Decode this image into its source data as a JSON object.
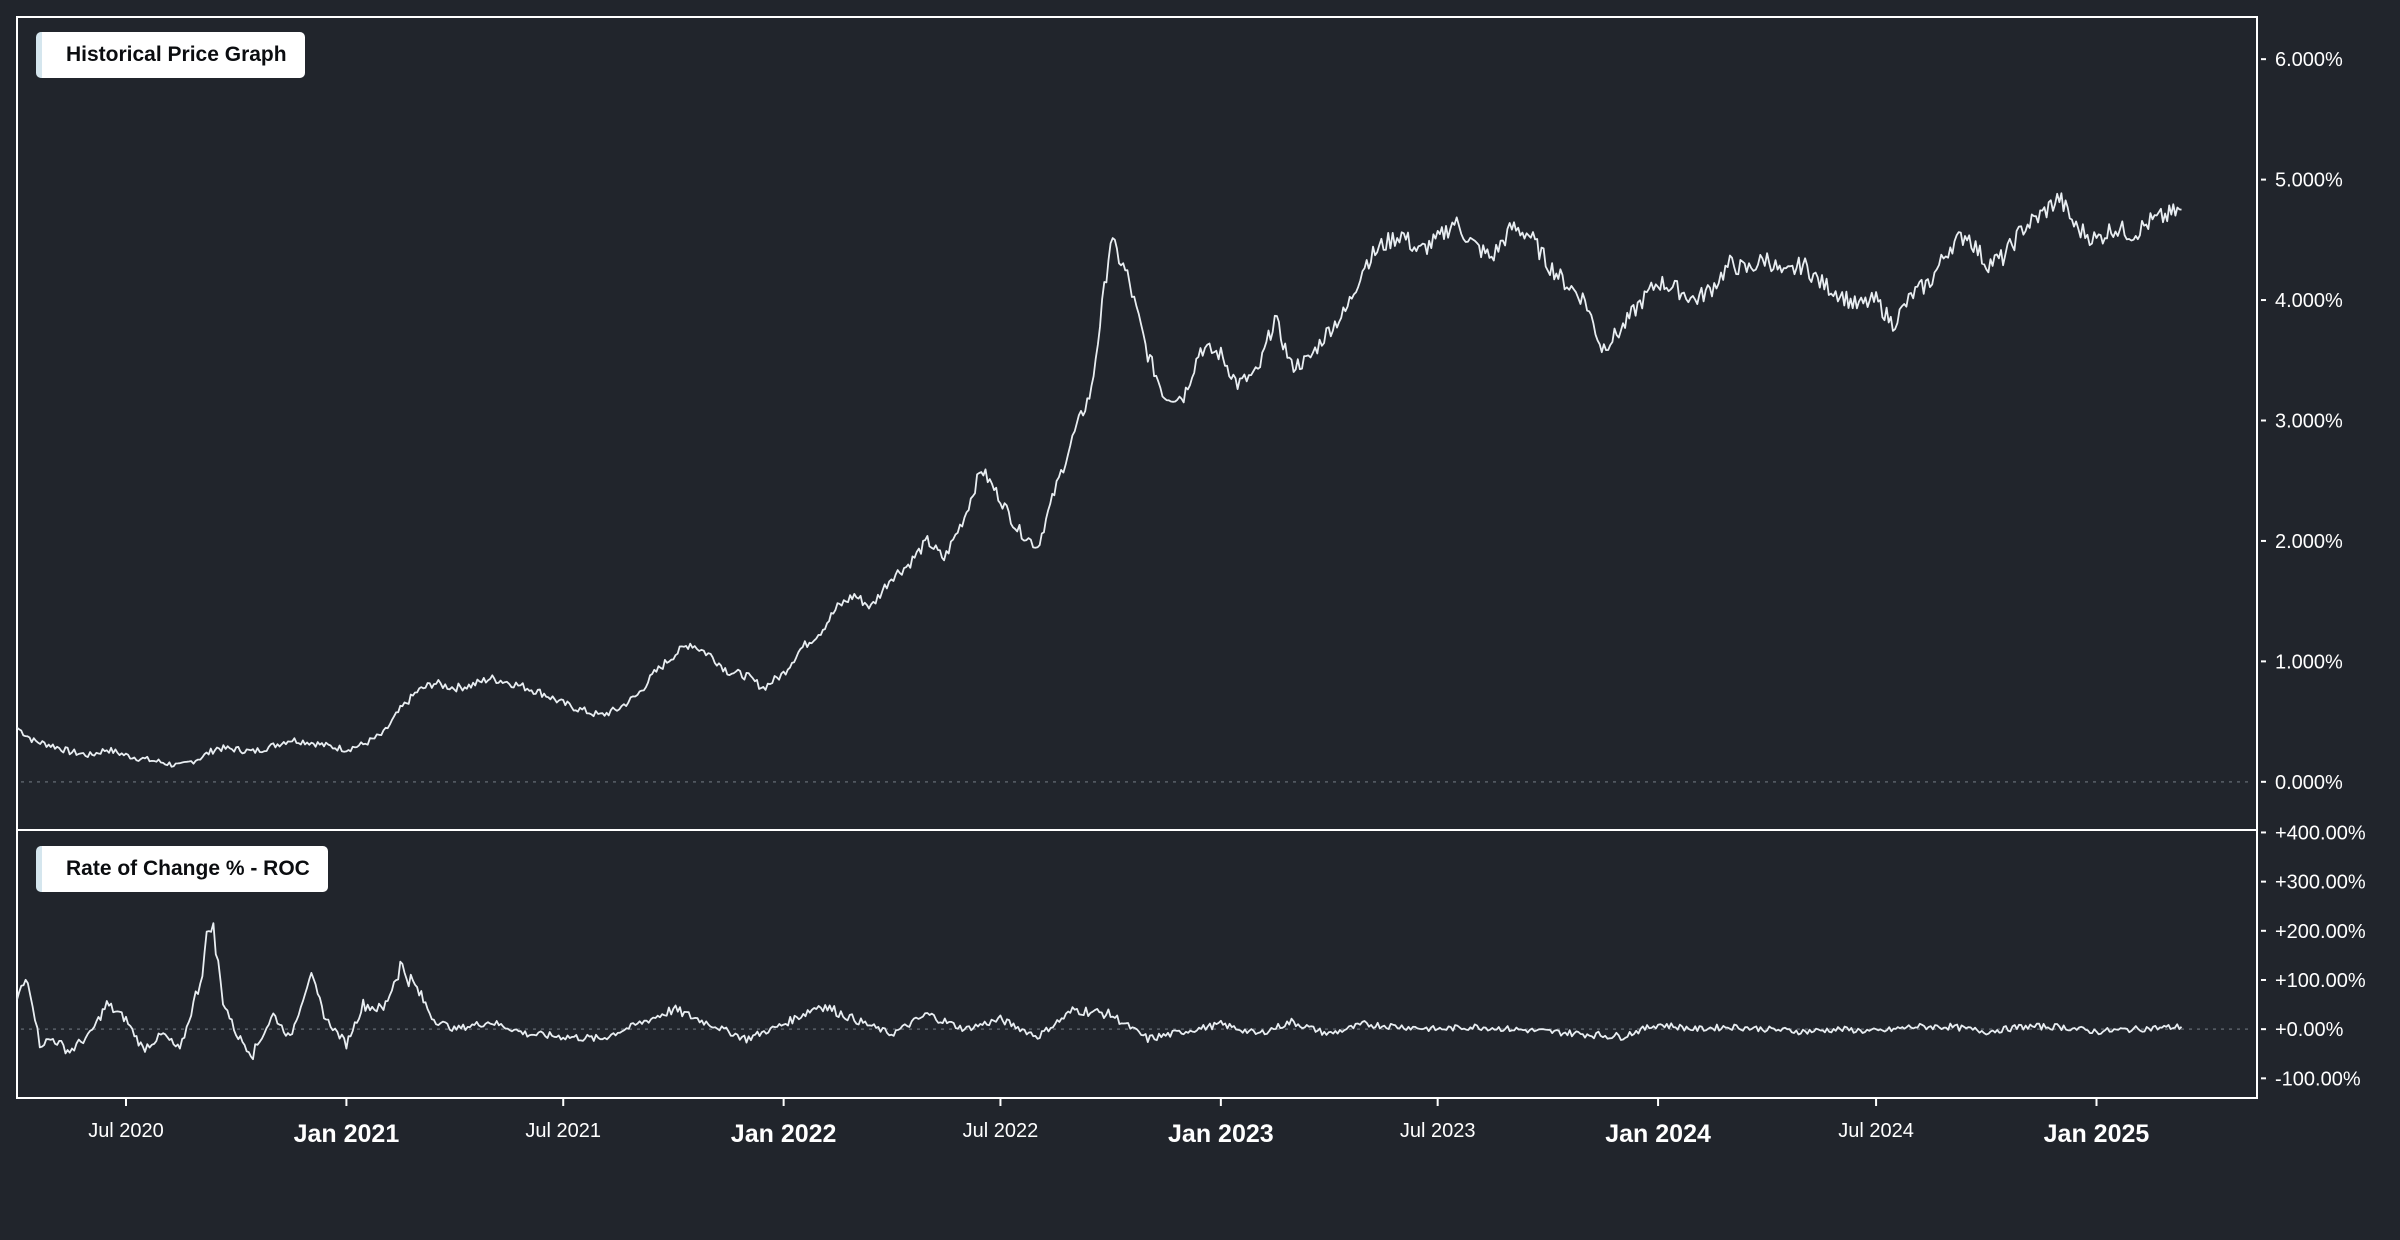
{
  "panels": {
    "price": {
      "title": "Historical Price Graph"
    },
    "roc": {
      "title": "Rate of Change % - ROC"
    }
  },
  "colors": {
    "background": "#21252c",
    "line": "#e9eef2",
    "frame": "#ffffff",
    "zero_line": "#5a6068",
    "title_bg": "#ffffff",
    "title_text": "#0b0d10",
    "title_accent": "#d5e6ee"
  },
  "chart_data": [
    {
      "type": "line",
      "title": "Historical Price Graph",
      "xlim": [
        "2020-04-01",
        "2025-05-15"
      ],
      "ylim": [
        -0.4,
        6.35
      ],
      "y_axis_position": "right",
      "y_ticks": [
        0,
        1,
        2,
        3,
        4,
        5,
        6
      ],
      "y_tick_labels": [
        "0.000%",
        "1.000%",
        "2.000%",
        "3.000%",
        "4.000%",
        "5.000%",
        "6.000%"
      ],
      "zero_line": "dotted",
      "series": [
        {
          "points": [
            [
              "2020-04-01",
              0.45
            ],
            [
              "2020-04-15",
              0.34
            ],
            [
              "2020-05-01",
              0.3
            ],
            [
              "2020-05-15",
              0.25
            ],
            [
              "2020-06-01",
              0.22
            ],
            [
              "2020-06-15",
              0.27
            ],
            [
              "2020-07-01",
              0.22
            ],
            [
              "2020-07-15",
              0.19
            ],
            [
              "2020-08-01",
              0.16
            ],
            [
              "2020-08-15",
              0.13
            ],
            [
              "2020-09-01",
              0.2
            ],
            [
              "2020-09-15",
              0.28
            ],
            [
              "2020-10-01",
              0.27
            ],
            [
              "2020-10-15",
              0.25
            ],
            [
              "2020-11-01",
              0.3
            ],
            [
              "2020-11-15",
              0.35
            ],
            [
              "2020-12-01",
              0.33
            ],
            [
              "2020-12-15",
              0.3
            ],
            [
              "2021-01-01",
              0.27
            ],
            [
              "2021-01-15",
              0.31
            ],
            [
              "2021-02-01",
              0.4
            ],
            [
              "2021-02-15",
              0.6
            ],
            [
              "2021-03-01",
              0.75
            ],
            [
              "2021-03-15",
              0.82
            ],
            [
              "2021-04-01",
              0.78
            ],
            [
              "2021-04-15",
              0.8
            ],
            [
              "2021-05-01",
              0.86
            ],
            [
              "2021-05-15",
              0.83
            ],
            [
              "2021-06-01",
              0.78
            ],
            [
              "2021-06-15",
              0.73
            ],
            [
              "2021-07-01",
              0.65
            ],
            [
              "2021-07-15",
              0.6
            ],
            [
              "2021-08-01",
              0.55
            ],
            [
              "2021-08-15",
              0.6
            ],
            [
              "2021-09-01",
              0.72
            ],
            [
              "2021-09-15",
              0.9
            ],
            [
              "2021-10-01",
              1.05
            ],
            [
              "2021-10-15",
              1.15
            ],
            [
              "2021-11-01",
              1.05
            ],
            [
              "2021-11-15",
              0.92
            ],
            [
              "2021-12-01",
              0.88
            ],
            [
              "2021-12-15",
              0.78
            ],
            [
              "2022-01-01",
              0.9
            ],
            [
              "2022-01-15",
              1.1
            ],
            [
              "2022-02-01",
              1.25
            ],
            [
              "2022-02-15",
              1.45
            ],
            [
              "2022-03-01",
              1.55
            ],
            [
              "2022-03-15",
              1.45
            ],
            [
              "2022-04-01",
              1.7
            ],
            [
              "2022-04-15",
              1.8
            ],
            [
              "2022-05-01",
              2.0
            ],
            [
              "2022-05-15",
              1.85
            ],
            [
              "2022-06-01",
              2.2
            ],
            [
              "2022-06-15",
              2.6
            ],
            [
              "2022-07-01",
              2.35
            ],
            [
              "2022-07-15",
              2.1
            ],
            [
              "2022-08-01",
              1.95
            ],
            [
              "2022-08-15",
              2.4
            ],
            [
              "2022-09-01",
              2.9
            ],
            [
              "2022-09-15",
              3.25
            ],
            [
              "2022-10-01",
              4.5
            ],
            [
              "2022-10-15",
              4.2
            ],
            [
              "2022-11-01",
              3.55
            ],
            [
              "2022-11-15",
              3.2
            ],
            [
              "2022-12-01",
              3.2
            ],
            [
              "2022-12-15",
              3.6
            ],
            [
              "2023-01-01",
              3.55
            ],
            [
              "2023-01-15",
              3.3
            ],
            [
              "2023-02-01",
              3.4
            ],
            [
              "2023-02-15",
              3.85
            ],
            [
              "2023-03-01",
              3.45
            ],
            [
              "2023-03-15",
              3.5
            ],
            [
              "2023-04-01",
              3.75
            ],
            [
              "2023-04-15",
              3.9
            ],
            [
              "2023-05-01",
              4.3
            ],
            [
              "2023-05-15",
              4.45
            ],
            [
              "2023-06-01",
              4.55
            ],
            [
              "2023-06-15",
              4.4
            ],
            [
              "2023-07-01",
              4.5
            ],
            [
              "2023-07-15",
              4.65
            ],
            [
              "2023-08-01",
              4.45
            ],
            [
              "2023-08-15",
              4.35
            ],
            [
              "2023-09-01",
              4.6
            ],
            [
              "2023-09-15",
              4.55
            ],
            [
              "2023-10-01",
              4.3
            ],
            [
              "2023-10-15",
              4.15
            ],
            [
              "2023-11-01",
              4.0
            ],
            [
              "2023-11-15",
              3.6
            ],
            [
              "2023-12-01",
              3.75
            ],
            [
              "2023-12-15",
              3.95
            ],
            [
              "2024-01-01",
              4.15
            ],
            [
              "2024-01-15",
              4.1
            ],
            [
              "2024-02-01",
              4.0
            ],
            [
              "2024-02-15",
              4.1
            ],
            [
              "2024-03-01",
              4.3
            ],
            [
              "2024-03-15",
              4.25
            ],
            [
              "2024-04-01",
              4.35
            ],
            [
              "2024-04-15",
              4.2
            ],
            [
              "2024-05-01",
              4.3
            ],
            [
              "2024-05-15",
              4.15
            ],
            [
              "2024-06-01",
              4.05
            ],
            [
              "2024-06-15",
              3.95
            ],
            [
              "2024-07-01",
              4.0
            ],
            [
              "2024-07-15",
              3.8
            ],
            [
              "2024-08-01",
              4.05
            ],
            [
              "2024-08-15",
              4.15
            ],
            [
              "2024-09-01",
              4.45
            ],
            [
              "2024-09-15",
              4.55
            ],
            [
              "2024-10-01",
              4.3
            ],
            [
              "2024-10-15",
              4.35
            ],
            [
              "2024-11-01",
              4.6
            ],
            [
              "2024-11-15",
              4.7
            ],
            [
              "2024-12-01",
              4.85
            ],
            [
              "2024-12-15",
              4.6
            ],
            [
              "2025-01-01",
              4.5
            ],
            [
              "2025-01-15",
              4.6
            ],
            [
              "2025-02-01",
              4.55
            ],
            [
              "2025-02-15",
              4.65
            ],
            [
              "2025-03-01",
              4.7
            ],
            [
              "2025-03-13",
              4.75
            ]
          ]
        }
      ]
    },
    {
      "type": "line",
      "title": "Rate of Change % - ROC",
      "xlim": [
        "2020-04-01",
        "2025-05-15"
      ],
      "ylim": [
        -140,
        405
      ],
      "y_axis_position": "right",
      "y_ticks": [
        -100,
        0,
        100,
        200,
        300,
        400
      ],
      "y_tick_labels": [
        "-100.00%",
        "+0.00%",
        "+100.00%",
        "+200.00%",
        "+300.00%",
        "+400.00%"
      ],
      "zero_line": "dotted",
      "series": [
        {
          "points": [
            [
              "2020-04-01",
              60
            ],
            [
              "2020-04-10",
              110
            ],
            [
              "2020-04-20",
              -30
            ],
            [
              "2020-05-01",
              -20
            ],
            [
              "2020-05-15",
              -45
            ],
            [
              "2020-06-01",
              -10
            ],
            [
              "2020-06-15",
              50
            ],
            [
              "2020-07-01",
              20
            ],
            [
              "2020-07-15",
              -40
            ],
            [
              "2020-08-01",
              -10
            ],
            [
              "2020-08-15",
              -45
            ],
            [
              "2020-09-01",
              100
            ],
            [
              "2020-09-10",
              230
            ],
            [
              "2020-09-20",
              60
            ],
            [
              "2020-10-01",
              -10
            ],
            [
              "2020-10-15",
              -50
            ],
            [
              "2020-11-01",
              30
            ],
            [
              "2020-11-15",
              -20
            ],
            [
              "2020-12-01",
              110
            ],
            [
              "2020-12-15",
              20
            ],
            [
              "2021-01-01",
              -30
            ],
            [
              "2021-01-15",
              50
            ],
            [
              "2021-02-01",
              40
            ],
            [
              "2021-02-15",
              130
            ],
            [
              "2021-03-01",
              80
            ],
            [
              "2021-03-15",
              20
            ],
            [
              "2021-04-01",
              0
            ],
            [
              "2021-05-01",
              15
            ],
            [
              "2021-06-01",
              -10
            ],
            [
              "2021-07-01",
              -15
            ],
            [
              "2021-08-01",
              -20
            ],
            [
              "2021-09-01",
              10
            ],
            [
              "2021-10-01",
              40
            ],
            [
              "2021-11-01",
              10
            ],
            [
              "2021-12-01",
              -20
            ],
            [
              "2022-01-01",
              10
            ],
            [
              "2022-02-01",
              50
            ],
            [
              "2022-03-01",
              20
            ],
            [
              "2022-04-01",
              -10
            ],
            [
              "2022-05-01",
              30
            ],
            [
              "2022-06-01",
              0
            ],
            [
              "2022-07-01",
              20
            ],
            [
              "2022-08-01",
              -15
            ],
            [
              "2022-09-01",
              40
            ],
            [
              "2022-10-01",
              30
            ],
            [
              "2022-11-01",
              -20
            ],
            [
              "2022-12-01",
              -5
            ],
            [
              "2023-01-01",
              10
            ],
            [
              "2023-02-01",
              -10
            ],
            [
              "2023-03-01",
              15
            ],
            [
              "2023-04-01",
              -10
            ],
            [
              "2023-05-01",
              10
            ],
            [
              "2023-06-01",
              5
            ],
            [
              "2023-07-01",
              0
            ],
            [
              "2023-08-01",
              5
            ],
            [
              "2023-09-01",
              0
            ],
            [
              "2023-10-01",
              -5
            ],
            [
              "2023-11-01",
              -10
            ],
            [
              "2023-12-01",
              -15
            ],
            [
              "2024-01-01",
              10
            ],
            [
              "2024-02-01",
              0
            ],
            [
              "2024-03-01",
              5
            ],
            [
              "2024-04-01",
              0
            ],
            [
              "2024-05-01",
              -5
            ],
            [
              "2024-06-01",
              0
            ],
            [
              "2024-07-01",
              -5
            ],
            [
              "2024-08-01",
              5
            ],
            [
              "2024-09-01",
              5
            ],
            [
              "2024-10-01",
              -5
            ],
            [
              "2024-11-01",
              5
            ],
            [
              "2024-12-01",
              5
            ],
            [
              "2025-01-01",
              -5
            ],
            [
              "2025-02-01",
              0
            ],
            [
              "2025-03-13",
              5
            ]
          ]
        }
      ]
    }
  ],
  "x_axis": {
    "ticks": [
      {
        "date": "2020-07-01",
        "label": "Jul 2020",
        "major": false
      },
      {
        "date": "2021-01-01",
        "label": "Jan 2021",
        "major": true
      },
      {
        "date": "2021-07-01",
        "label": "Jul 2021",
        "major": false
      },
      {
        "date": "2022-01-01",
        "label": "Jan 2022",
        "major": true
      },
      {
        "date": "2022-07-01",
        "label": "Jul 2022",
        "major": false
      },
      {
        "date": "2023-01-01",
        "label": "Jan 2023",
        "major": true
      },
      {
        "date": "2023-07-01",
        "label": "Jul 2023",
        "major": false
      },
      {
        "date": "2024-01-01",
        "label": "Jan 2024",
        "major": true
      },
      {
        "date": "2024-07-01",
        "label": "Jul 2024",
        "major": false
      },
      {
        "date": "2025-01-01",
        "label": "Jan 2025",
        "major": true
      }
    ]
  }
}
